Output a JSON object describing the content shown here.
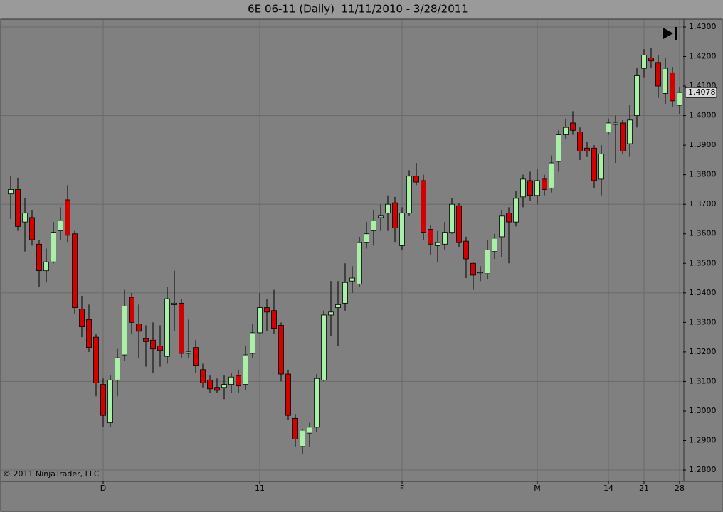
{
  "chart_data": {
    "type": "candlestick",
    "title": "6E 06-11 (Daily)  11/11/2010 - 3/28/2011",
    "copyright": "© 2011 NinjaTrader, LLC",
    "up_color": "#a8f0a8",
    "down_color": "#d40000",
    "grid": true,
    "ylim": [
      1.2764,
      1.4324
    ],
    "yticks": [
      {
        "value": 1.28,
        "label": "1.2800"
      },
      {
        "value": 1.29,
        "label": "1.2900"
      },
      {
        "value": 1.3,
        "label": "1.3000"
      },
      {
        "value": 1.31,
        "label": "1.3100"
      },
      {
        "value": 1.32,
        "label": "1.3200"
      },
      {
        "value": 1.33,
        "label": "1.3300"
      },
      {
        "value": 1.34,
        "label": "1.3400"
      },
      {
        "value": 1.35,
        "label": "1.3500"
      },
      {
        "value": 1.36,
        "label": "1.3600"
      },
      {
        "value": 1.37,
        "label": "1.3700"
      },
      {
        "value": 1.38,
        "label": "1.3800"
      },
      {
        "value": 1.39,
        "label": "1.3900"
      },
      {
        "value": 1.4,
        "label": "1.4000"
      },
      {
        "value": 1.41,
        "label": "1.4100"
      },
      {
        "value": 1.42,
        "label": "1.4200"
      },
      {
        "value": 1.43,
        "label": "1.4300"
      }
    ],
    "categories": [
      null,
      null,
      null,
      null,
      null,
      null,
      null,
      null,
      null,
      null,
      null,
      null,
      null,
      "D",
      null,
      null,
      null,
      null,
      null,
      null,
      null,
      null,
      null,
      null,
      null,
      null,
      null,
      null,
      null,
      null,
      null,
      null,
      null,
      null,
      null,
      "11",
      null,
      null,
      null,
      null,
      null,
      null,
      null,
      null,
      null,
      null,
      null,
      null,
      null,
      null,
      null,
      null,
      null,
      null,
      null,
      "F",
      null,
      null,
      null,
      null,
      null,
      null,
      null,
      null,
      null,
      null,
      null,
      null,
      null,
      null,
      null,
      null,
      null,
      null,
      "M",
      null,
      null,
      null,
      null,
      null,
      null,
      null,
      null,
      null,
      "14",
      null,
      null,
      null,
      null,
      "21",
      null,
      null,
      null,
      null,
      "28"
    ],
    "open": [
      1.3735,
      1.375,
      1.364,
      1.3655,
      1.3565,
      1.3475,
      1.3505,
      1.361,
      1.3715,
      1.36,
      1.3345,
      1.331,
      1.325,
      1.309,
      1.296,
      1.3105,
      1.319,
      1.3385,
      1.3295,
      1.3245,
      1.324,
      1.322,
      1.3185,
      1.336,
      1.3365,
      1.3195,
      1.3215,
      1.314,
      1.3105,
      1.308,
      1.308,
      1.309,
      1.312,
      1.309,
      1.3195,
      1.3265,
      1.335,
      1.334,
      1.329,
      1.3125,
      1.2975,
      1.288,
      1.2925,
      1.2945,
      1.3105,
      1.3325,
      1.335,
      1.3365,
      1.344,
      1.343,
      1.357,
      1.361,
      1.3655,
      1.367,
      1.3705,
      1.356,
      1.367,
      1.3795,
      1.378,
      1.3615,
      1.356,
      1.3565,
      1.3605,
      1.3695,
      1.3575,
      1.35,
      1.347,
      1.3465,
      1.354,
      1.359,
      1.367,
      1.364,
      1.3725,
      1.378,
      1.373,
      1.3785,
      1.3755,
      1.3845,
      1.3935,
      1.3975,
      1.3945,
      1.389,
      1.389,
      1.3785,
      1.3945,
      1.397,
      1.3975,
      1.3905,
      1.4,
      1.416,
      1.4195,
      1.418,
      1.4075,
      1.4145,
      1.4035
    ],
    "high": [
      1.3795,
      1.379,
      1.372,
      1.368,
      1.358,
      1.355,
      1.364,
      1.369,
      1.3765,
      1.361,
      1.339,
      1.336,
      1.326,
      1.311,
      1.312,
      1.321,
      1.341,
      1.34,
      1.336,
      1.329,
      1.33,
      1.329,
      1.342,
      1.3475,
      1.338,
      1.331,
      1.324,
      1.316,
      1.312,
      1.311,
      1.312,
      1.313,
      1.314,
      1.322,
      1.3295,
      1.34,
      1.338,
      1.341,
      1.33,
      1.314,
      1.299,
      1.294,
      1.296,
      1.3125,
      1.334,
      1.344,
      1.344,
      1.35,
      1.349,
      1.359,
      1.364,
      1.368,
      1.37,
      1.373,
      1.3725,
      1.369,
      1.3815,
      1.384,
      1.38,
      1.363,
      1.361,
      1.364,
      1.372,
      1.3705,
      1.359,
      1.3505,
      1.349,
      1.358,
      1.36,
      1.368,
      1.369,
      1.3745,
      1.38,
      1.381,
      1.382,
      1.38,
      1.3865,
      1.395,
      1.399,
      1.4015,
      1.396,
      1.391,
      1.39,
      1.39,
      1.399,
      1.4,
      1.3985,
      1.4035,
      1.416,
      1.4225,
      1.423,
      1.4205,
      1.4195,
      1.4165,
      1.4095
    ],
    "low": [
      1.365,
      1.361,
      1.354,
      1.356,
      1.342,
      1.3435,
      1.35,
      1.358,
      1.357,
      1.333,
      1.325,
      1.32,
      1.305,
      1.2945,
      1.2945,
      1.305,
      1.317,
      1.326,
      1.318,
      1.315,
      1.313,
      1.315,
      1.316,
      1.327,
      1.318,
      1.318,
      1.313,
      1.308,
      1.306,
      1.306,
      1.304,
      1.306,
      1.306,
      1.307,
      1.318,
      1.326,
      1.327,
      1.326,
      1.31,
      1.297,
      1.288,
      1.2855,
      1.288,
      1.293,
      1.31,
      1.3255,
      1.322,
      1.334,
      1.34,
      1.342,
      1.355,
      1.356,
      1.361,
      1.361,
      1.357,
      1.3545,
      1.366,
      1.3765,
      1.358,
      1.353,
      1.3505,
      1.3545,
      1.36,
      1.3555,
      1.345,
      1.341,
      1.344,
      1.3445,
      1.3515,
      1.352,
      1.35,
      1.3625,
      1.369,
      1.371,
      1.37,
      1.373,
      1.374,
      1.381,
      1.392,
      1.3935,
      1.385,
      1.386,
      1.3755,
      1.373,
      1.3935,
      1.384,
      1.387,
      1.386,
      1.396,
      1.413,
      1.416,
      1.406,
      1.404,
      1.403,
      1.4005
    ],
    "close": [
      1.375,
      1.3625,
      1.367,
      1.358,
      1.3475,
      1.3505,
      1.3605,
      1.3645,
      1.3595,
      1.335,
      1.3285,
      1.3215,
      1.3095,
      1.2985,
      1.3105,
      1.318,
      1.3355,
      1.33,
      1.327,
      1.3235,
      1.321,
      1.3205,
      1.338,
      1.3365,
      1.3195,
      1.32,
      1.3155,
      1.3095,
      1.3075,
      1.307,
      1.309,
      1.3115,
      1.3085,
      1.319,
      1.3265,
      1.335,
      1.3335,
      1.328,
      1.3125,
      1.2985,
      1.2905,
      1.2935,
      1.2945,
      1.311,
      1.3325,
      1.3335,
      1.336,
      1.3435,
      1.345,
      1.357,
      1.36,
      1.3645,
      1.366,
      1.37,
      1.362,
      1.367,
      1.3795,
      1.3775,
      1.3605,
      1.3565,
      1.357,
      1.3605,
      1.37,
      1.357,
      1.3515,
      1.346,
      1.347,
      1.3545,
      1.3585,
      1.366,
      1.364,
      1.372,
      1.3785,
      1.373,
      1.378,
      1.375,
      1.384,
      1.3935,
      1.396,
      1.395,
      1.388,
      1.388,
      1.378,
      1.387,
      1.3975,
      1.3975,
      1.388,
      1.3985,
      1.4135,
      1.4205,
      1.4185,
      1.41,
      1.416,
      1.405,
      1.4078
    ]
  }
}
